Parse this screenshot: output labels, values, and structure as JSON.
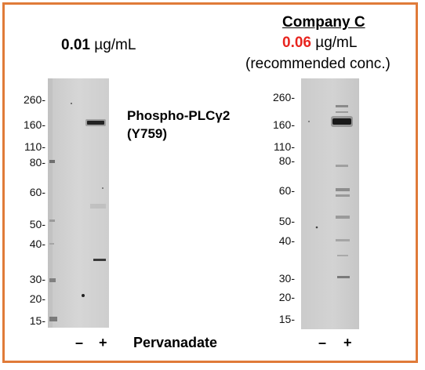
{
  "left_panel": {
    "concentration_value": "0.01",
    "concentration_unit": " µg/mL",
    "antibody_name_line1": "Phospho-PLCγ2",
    "antibody_name_line2": "(Y759)",
    "mw_markers": [
      "260-",
      "160-",
      "110-",
      "80-",
      "60-",
      "50-",
      "40-",
      "30-",
      "20-",
      "15-"
    ]
  },
  "right_panel": {
    "company": "Company C",
    "concentration_value": "0.06",
    "concentration_unit": " µg/mL",
    "recommendation": "(recommended conc.)",
    "mw_markers": [
      "260-",
      "160-",
      "110-",
      "80-",
      "60-",
      "50-",
      "40-",
      "30-",
      "20-",
      "15-"
    ]
  },
  "lanes": {
    "minus": "–",
    "plus": "+",
    "treatment": "Pervanadate"
  },
  "colors": {
    "border": "#e07b39",
    "highlight": "#e8251f"
  }
}
